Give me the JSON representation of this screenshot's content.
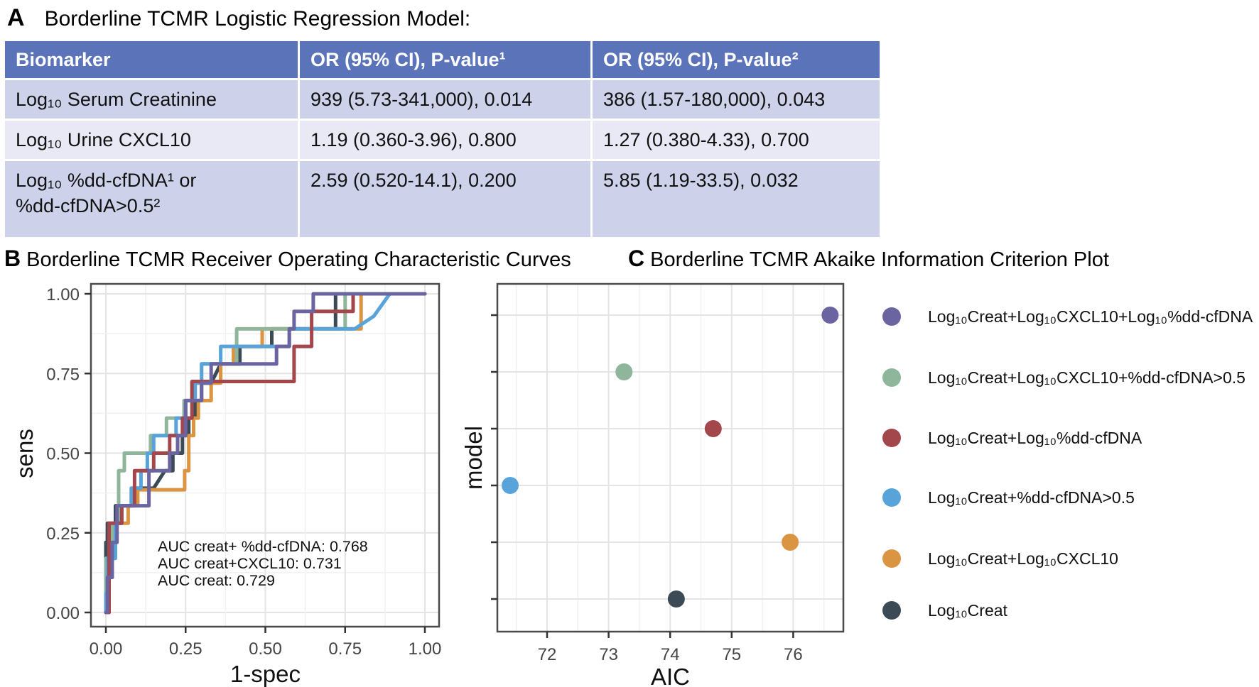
{
  "panelA": {
    "label": "A",
    "title": "Borderline TCMR Logistic Regression Model:",
    "table": {
      "headers": [
        "Biomarker",
        "OR (95% CI), P-value¹",
        "OR (95% CI), P-value²"
      ],
      "rows": [
        [
          "Log₁₀ Serum Creatinine",
          "939 (5.73-341,000), 0.014",
          "386 (1.57-180,000), 0.043"
        ],
        [
          "Log₁₀ Urine CXCL10",
          "1.19 (0.360-3.96), 0.800",
          "1.27 (0.380-4.33), 0.700"
        ],
        [
          "Log₁₀ %dd-cfDNA¹ or\n %dd-cfDNA>0.5²",
          "2.59 (0.520-14.1), 0.200",
          "5.85 (1.19-33.5), 0.032"
        ]
      ]
    }
  },
  "panelB": {
    "label": "B",
    "title": "Borderline TCMR Receiver Operating Characteristic Curves"
  },
  "panelC": {
    "label": "C",
    "title": "Borderline TCMR Akaike Information Criterion Plot"
  },
  "legend": {
    "position": "right",
    "items": [
      {
        "label": "Log₁₀Creat+Log₁₀CXCL10+Log₁₀%dd-cfDNA",
        "color": "#6A64A0"
      },
      {
        "label": "Log₁₀Creat+Log₁₀CXCL10+%dd-cfDNA>0.5",
        "color": "#8FB69B"
      },
      {
        "label": "Log₁₀Creat+Log₁₀%dd-cfDNA",
        "color": "#A4474C"
      },
      {
        "label": "Log₁₀Creat+%dd-cfDNA>0.5",
        "color": "#58A3DA"
      },
      {
        "label": "Log₁₀Creat+Log₁₀CXCL10",
        "color": "#DB9442"
      },
      {
        "label": "Log₁₀Creat",
        "color": "#3B4A54"
      }
    ]
  },
  "chart_data": [
    {
      "type": "line",
      "subtype": "roc-step-curves",
      "title": "Borderline TCMR Receiver Operating Characteristic Curves",
      "xlabel": "1-spec",
      "ylabel": "sens",
      "xlim": [
        0,
        1
      ],
      "ylim": [
        0,
        1
      ],
      "grid": true,
      "ticks": {
        "values": [
          0,
          0.25,
          0.5,
          0.75,
          1
        ],
        "labels": [
          "0.00",
          "0.25",
          "0.50",
          "0.75",
          "1.00"
        ]
      },
      "annotations": [
        "AUC creat+ %dd-cfDNA: 0.768",
        "AUC creat+CXCL10: 0.731",
        "AUC creat: 0.729"
      ],
      "auc": {
        "creat_plus_ddcfDNA": 0.768,
        "creat_plus_CXCL10": 0.731,
        "creat": 0.729
      },
      "series": [
        {
          "name": "Log₁₀Creat",
          "color": "#3B4A54",
          "points": [
            [
              0,
              0
            ],
            [
              0,
              0.22
            ],
            [
              0.005,
              0.22
            ],
            [
              0.005,
              0.28
            ],
            [
              0.03,
              0.28
            ],
            [
              0.03,
              0.335
            ],
            [
              0.08,
              0.335
            ],
            [
              0.08,
              0.39
            ],
            [
              0.15,
              0.39
            ],
            [
              0.185,
              0.445
            ],
            [
              0.21,
              0.445
            ],
            [
              0.21,
              0.5
            ],
            [
              0.24,
              0.5
            ],
            [
              0.24,
              0.555
            ],
            [
              0.26,
              0.555
            ],
            [
              0.26,
              0.61
            ],
            [
              0.28,
              0.61
            ],
            [
              0.28,
              0.665
            ],
            [
              0.3,
              0.665
            ],
            [
              0.3,
              0.72
            ],
            [
              0.33,
              0.72
            ],
            [
              0.36,
              0.78
            ],
            [
              0.42,
              0.78
            ],
            [
              0.42,
              0.835
            ],
            [
              0.52,
              0.835
            ],
            [
              0.52,
              0.89
            ],
            [
              0.72,
              0.89
            ],
            [
              0.72,
              1
            ],
            [
              1,
              1
            ]
          ]
        },
        {
          "name": "Log₁₀Creat+Log₁₀CXCL10",
          "color": "#DB9442",
          "points": [
            [
              0,
              0
            ],
            [
              0.01,
              0
            ],
            [
              0.01,
              0.22
            ],
            [
              0.02,
              0.22
            ],
            [
              0.02,
              0.28
            ],
            [
              0.07,
              0.28
            ],
            [
              0.07,
              0.335
            ],
            [
              0.1,
              0.335
            ],
            [
              0.1,
              0.385
            ],
            [
              0.247,
              0.385
            ],
            [
              0.247,
              0.445
            ],
            [
              0.26,
              0.445
            ],
            [
              0.26,
              0.555
            ],
            [
              0.275,
              0.555
            ],
            [
              0.275,
              0.61
            ],
            [
              0.29,
              0.61
            ],
            [
              0.29,
              0.665
            ],
            [
              0.33,
              0.665
            ],
            [
              0.33,
              0.72
            ],
            [
              0.36,
              0.72
            ],
            [
              0.36,
              0.78
            ],
            [
              0.4,
              0.78
            ],
            [
              0.4,
              0.835
            ],
            [
              0.49,
              0.835
            ],
            [
              0.49,
              0.89
            ],
            [
              0.8,
              0.89
            ],
            [
              0.8,
              1
            ],
            [
              1,
              1
            ]
          ]
        },
        {
          "name": "Log₁₀Creat+Log₁₀CXCL10+%dd-cfDNA>0.5",
          "color": "#8FB69B",
          "points": [
            [
              0,
              0
            ],
            [
              0,
              0.17
            ],
            [
              0.01,
              0.17
            ],
            [
              0.01,
              0.22
            ],
            [
              0.02,
              0.22
            ],
            [
              0.02,
              0.28
            ],
            [
              0.04,
              0.28
            ],
            [
              0.04,
              0.445
            ],
            [
              0.058,
              0.445
            ],
            [
              0.058,
              0.5
            ],
            [
              0.14,
              0.5
            ],
            [
              0.14,
              0.555
            ],
            [
              0.19,
              0.555
            ],
            [
              0.19,
              0.61
            ],
            [
              0.245,
              0.61
            ],
            [
              0.245,
              0.665
            ],
            [
              0.27,
              0.665
            ],
            [
              0.27,
              0.72
            ],
            [
              0.3,
              0.72
            ],
            [
              0.3,
              0.78
            ],
            [
              0.41,
              0.78
            ],
            [
              0.41,
              0.89
            ],
            [
              0.75,
              0.89
            ],
            [
              0.75,
              1
            ],
            [
              1,
              1
            ]
          ]
        },
        {
          "name": "Log₁₀Creat+%dd-cfDNA>0.5",
          "color": "#58A3DA",
          "points": [
            [
              0,
              0
            ],
            [
              0,
              0.06
            ],
            [
              0.005,
              0.06
            ],
            [
              0.005,
              0.17
            ],
            [
              0.03,
              0.17
            ],
            [
              0.03,
              0.28
            ],
            [
              0.05,
              0.28
            ],
            [
              0.05,
              0.335
            ],
            [
              0.08,
              0.335
            ],
            [
              0.08,
              0.39
            ],
            [
              0.11,
              0.39
            ],
            [
              0.11,
              0.445
            ],
            [
              0.13,
              0.445
            ],
            [
              0.13,
              0.5
            ],
            [
              0.15,
              0.5
            ],
            [
              0.15,
              0.555
            ],
            [
              0.22,
              0.555
            ],
            [
              0.22,
              0.61
            ],
            [
              0.25,
              0.61
            ],
            [
              0.25,
              0.665
            ],
            [
              0.28,
              0.665
            ],
            [
              0.28,
              0.72
            ],
            [
              0.3,
              0.72
            ],
            [
              0.3,
              0.78
            ],
            [
              0.36,
              0.78
            ],
            [
              0.36,
              0.835
            ],
            [
              0.575,
              0.835
            ],
            [
              0.575,
              0.89
            ],
            [
              0.78,
              0.89
            ],
            [
              0.84,
              0.93
            ],
            [
              0.89,
              1
            ],
            [
              1,
              1
            ]
          ]
        },
        {
          "name": "Log₁₀Creat+Log₁₀%dd-cfDNA",
          "color": "#A4474C",
          "points": [
            [
              0,
              0
            ],
            [
              0.01,
              0
            ],
            [
              0.01,
              0.28
            ],
            [
              0.05,
              0.28
            ],
            [
              0.05,
              0.335
            ],
            [
              0.09,
              0.335
            ],
            [
              0.09,
              0.445
            ],
            [
              0.15,
              0.445
            ],
            [
              0.15,
              0.5
            ],
            [
              0.2,
              0.5
            ],
            [
              0.2,
              0.555
            ],
            [
              0.24,
              0.555
            ],
            [
              0.24,
              0.61
            ],
            [
              0.27,
              0.61
            ],
            [
              0.27,
              0.725
            ],
            [
              0.59,
              0.725
            ],
            [
              0.59,
              0.835
            ],
            [
              0.645,
              0.835
            ],
            [
              0.645,
              0.945
            ],
            [
              0.775,
              0.945
            ],
            [
              0.775,
              1
            ],
            [
              1,
              1
            ]
          ]
        },
        {
          "name": "Log₁₀Creat+Log₁₀CXCL10+Log₁₀%dd-cfDNA",
          "color": "#6A64A0",
          "points": [
            [
              0,
              0
            ],
            [
              0.005,
              0
            ],
            [
              0.005,
              0.11
            ],
            [
              0.02,
              0.11
            ],
            [
              0.02,
              0.22
            ],
            [
              0.035,
              0.22
            ],
            [
              0.035,
              0.335
            ],
            [
              0.135,
              0.335
            ],
            [
              0.135,
              0.445
            ],
            [
              0.2,
              0.445
            ],
            [
              0.2,
              0.5
            ],
            [
              0.225,
              0.5
            ],
            [
              0.225,
              0.555
            ],
            [
              0.25,
              0.555
            ],
            [
              0.25,
              0.665
            ],
            [
              0.3,
              0.665
            ],
            [
              0.3,
              0.72
            ],
            [
              0.33,
              0.72
            ],
            [
              0.33,
              0.78
            ],
            [
              0.535,
              0.78
            ],
            [
              0.535,
              0.835
            ],
            [
              0.575,
              0.835
            ],
            [
              0.575,
              0.89
            ],
            [
              0.59,
              0.89
            ],
            [
              0.59,
              0.945
            ],
            [
              0.65,
              0.945
            ],
            [
              0.65,
              1
            ],
            [
              1,
              1
            ]
          ]
        }
      ]
    },
    {
      "type": "scatter",
      "subtype": "aic-dot-plot",
      "title": "Borderline TCMR Akaike Information Criterion Plot",
      "xlabel": "AIC",
      "ylabel": "model",
      "xlim": [
        71.2,
        76.8
      ],
      "grid": true,
      "legend_position": "right",
      "xticks": {
        "values": [
          72,
          73,
          74,
          75,
          76
        ],
        "labels": [
          "72",
          "73",
          "74",
          "75",
          "76"
        ]
      },
      "points": [
        {
          "model": "Log₁₀Creat+Log₁₀CXCL10+Log₁₀%dd-cfDNA",
          "aic": 76.6,
          "color": "#6A64A0",
          "row": 0
        },
        {
          "model": "Log₁₀Creat+Log₁₀CXCL10+%dd-cfDNA>0.5",
          "aic": 73.25,
          "color": "#8FB69B",
          "row": 1
        },
        {
          "model": "Log₁₀Creat+Log₁₀%dd-cfDNA",
          "aic": 74.7,
          "color": "#A4474C",
          "row": 2
        },
        {
          "model": "Log₁₀Creat+%dd-cfDNA>0.5",
          "aic": 71.4,
          "color": "#58A3DA",
          "row": 3
        },
        {
          "model": "Log₁₀Creat+Log₁₀CXCL10",
          "aic": 75.95,
          "color": "#DB9442",
          "row": 4
        },
        {
          "model": "Log₁₀Creat",
          "aic": 74.1,
          "color": "#3B4A54",
          "row": 5
        }
      ]
    }
  ],
  "style_colors": {
    "table_header_bg": "#5B73B9",
    "table_row_dark": "#CDD2EA",
    "table_row_light": "#E8E9F5",
    "grid_major": "#E4E4E4",
    "grid_minor": "#F1F1F1",
    "panel_border": "#4A4A4A",
    "tick_text": "#444444"
  }
}
